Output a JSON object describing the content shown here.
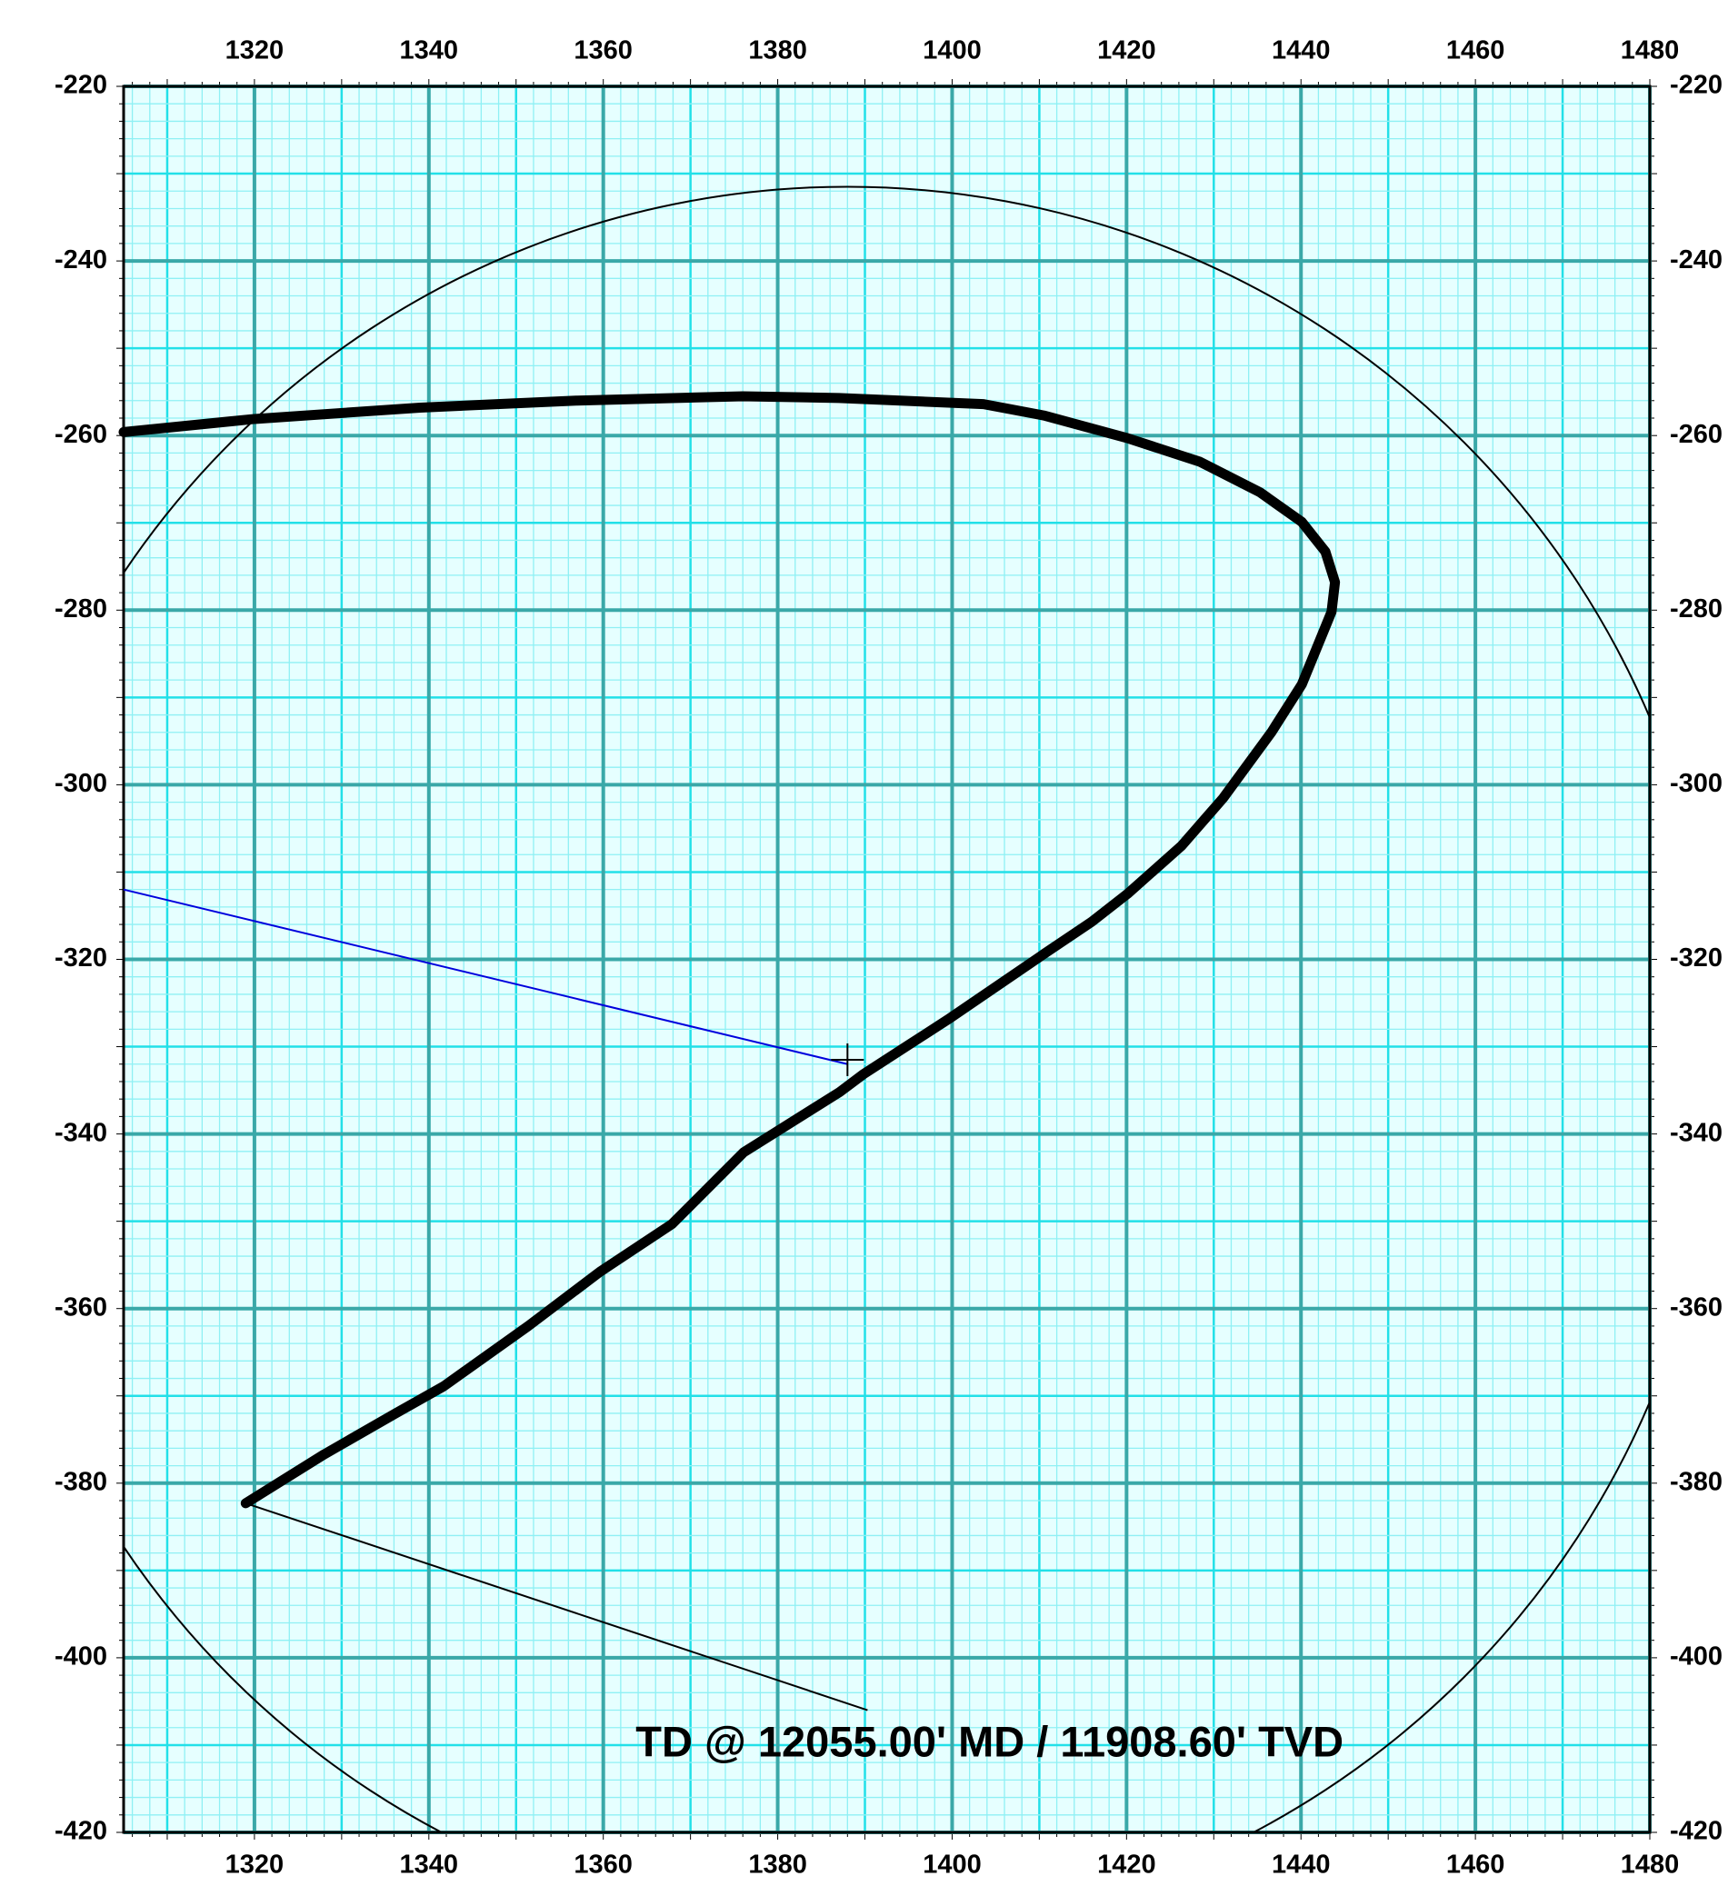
{
  "chart_data": {
    "type": "line",
    "x": [
      1305,
      1320,
      1339,
      1356.9,
      1376,
      1387,
      1403.6,
      1410.5,
      1420.1,
      1428.4,
      1435.3,
      1440.1,
      1442.8,
      1443.9,
      1443.5,
      1440.1,
      1436.6,
      1431.1,
      1426.3,
      1420.1,
      1416,
      1410.5,
      1399.5,
      1389.9,
      1387.1,
      1376.1,
      1367.9,
      1359.6,
      1351.4,
      1341.7,
      1336.2,
      1328,
      1319
    ],
    "values": [
      -259.6,
      -258.1,
      -256.8,
      -256,
      -255.5,
      -255.7,
      -256.4,
      -257.7,
      -260.3,
      -263,
      -266.5,
      -269.9,
      -273.3,
      -276.8,
      -280.2,
      -288.5,
      -294,
      -301.5,
      -307,
      -312.5,
      -315.7,
      -319.4,
      -326.9,
      -333.1,
      -335.2,
      -342.1,
      -350.3,
      -355.8,
      -362,
      -368.9,
      -372,
      -376.7,
      -382.3
    ],
    "color": "#000000",
    "xlim": [
      1305,
      1480
    ],
    "ylim": [
      -420,
      -220
    ],
    "xticks": [
      1320,
      1340,
      1360,
      1380,
      1400,
      1420,
      1440,
      1460,
      1480
    ],
    "yticks": [
      -220,
      -240,
      -260,
      -280,
      -300,
      -320,
      -340,
      -360,
      -380,
      -400,
      -420
    ],
    "grid": true,
    "mid_grid_step": 10,
    "minor_grid_step": 2,
    "circle": {
      "cx": 1388,
      "cy": -331.5,
      "r": 100,
      "color": "#000000"
    },
    "reference_line": {
      "x": [
        1305,
        1388
      ],
      "values": [
        -312,
        -332
      ],
      "color": "#0000dd"
    },
    "annotations": [
      {
        "text": "TD @ 12055.00' MD / 11908.60' TVD",
        "x": 1404.3,
        "y": -410,
        "leader_x": 1390.3,
        "leader_y": -406
      }
    ]
  }
}
